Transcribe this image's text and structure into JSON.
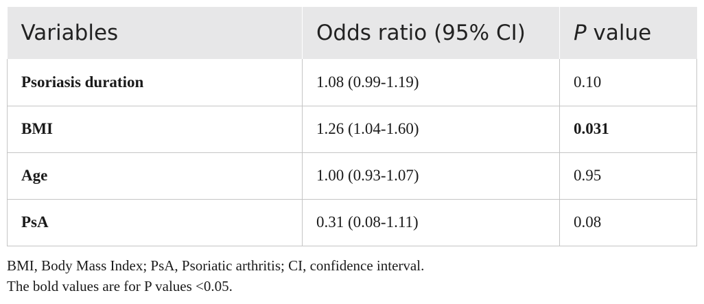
{
  "table": {
    "headers": {
      "variables": "Variables",
      "odds_ratio": "Odds ratio (95% CI)",
      "p_prefix": "P",
      "p_suffix": " value"
    },
    "rows": [
      {
        "variable": "Psoriasis duration",
        "odds_ratio": "1.08 (0.99-1.19)",
        "p_value": "0.10",
        "p_bold": false
      },
      {
        "variable": "BMI",
        "odds_ratio": "1.26 (1.04-1.60)",
        "p_value": "0.031",
        "p_bold": true
      },
      {
        "variable": "Age",
        "odds_ratio": "1.00 (0.93-1.07)",
        "p_value": "0.95",
        "p_bold": false
      },
      {
        "variable": "PsA",
        "odds_ratio": "0.31 (0.08-1.11)",
        "p_value": "0.08",
        "p_bold": false
      }
    ]
  },
  "footnotes": [
    "BMI, Body Mass Index; PsA, Psoriatic arthritis; CI, confidence interval.",
    "The bold values are for P values <0.05."
  ]
}
